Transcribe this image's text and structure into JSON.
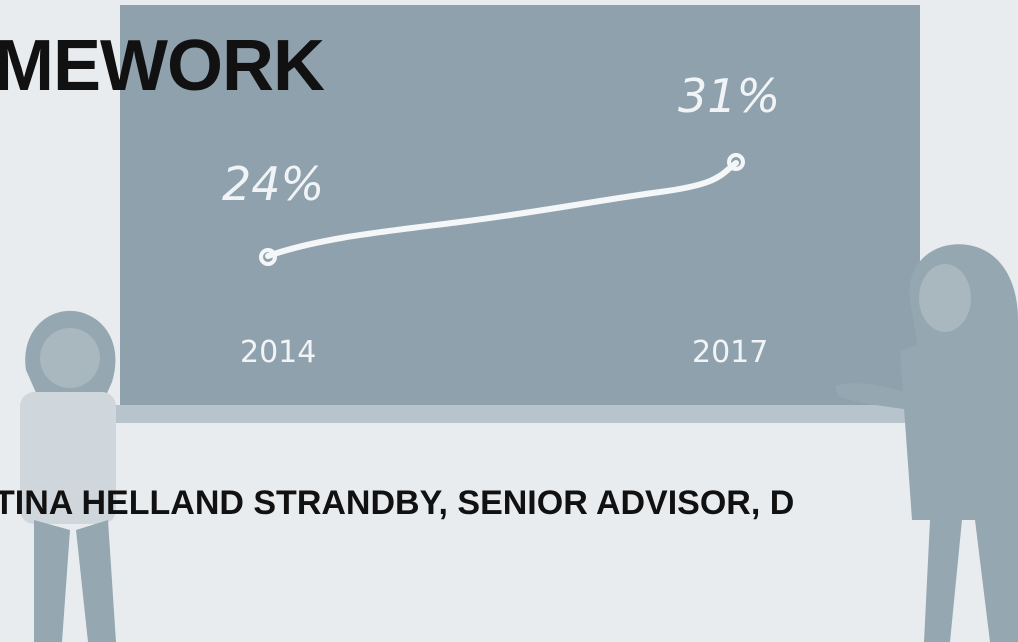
{
  "slide": {
    "title": "MEWORK",
    "subtitle": "TINA HELLAND STRANDBY, SENIOR ADVISOR, D"
  },
  "board": {
    "start_value": "24%",
    "end_value": "31%",
    "start_year": "2014",
    "end_year": "2017"
  },
  "colors": {
    "background": "#e9ecef",
    "board": "#8fa1ac",
    "chalk": "#f4f6f8",
    "figures": "#95a7b1",
    "text": "#111111"
  }
}
